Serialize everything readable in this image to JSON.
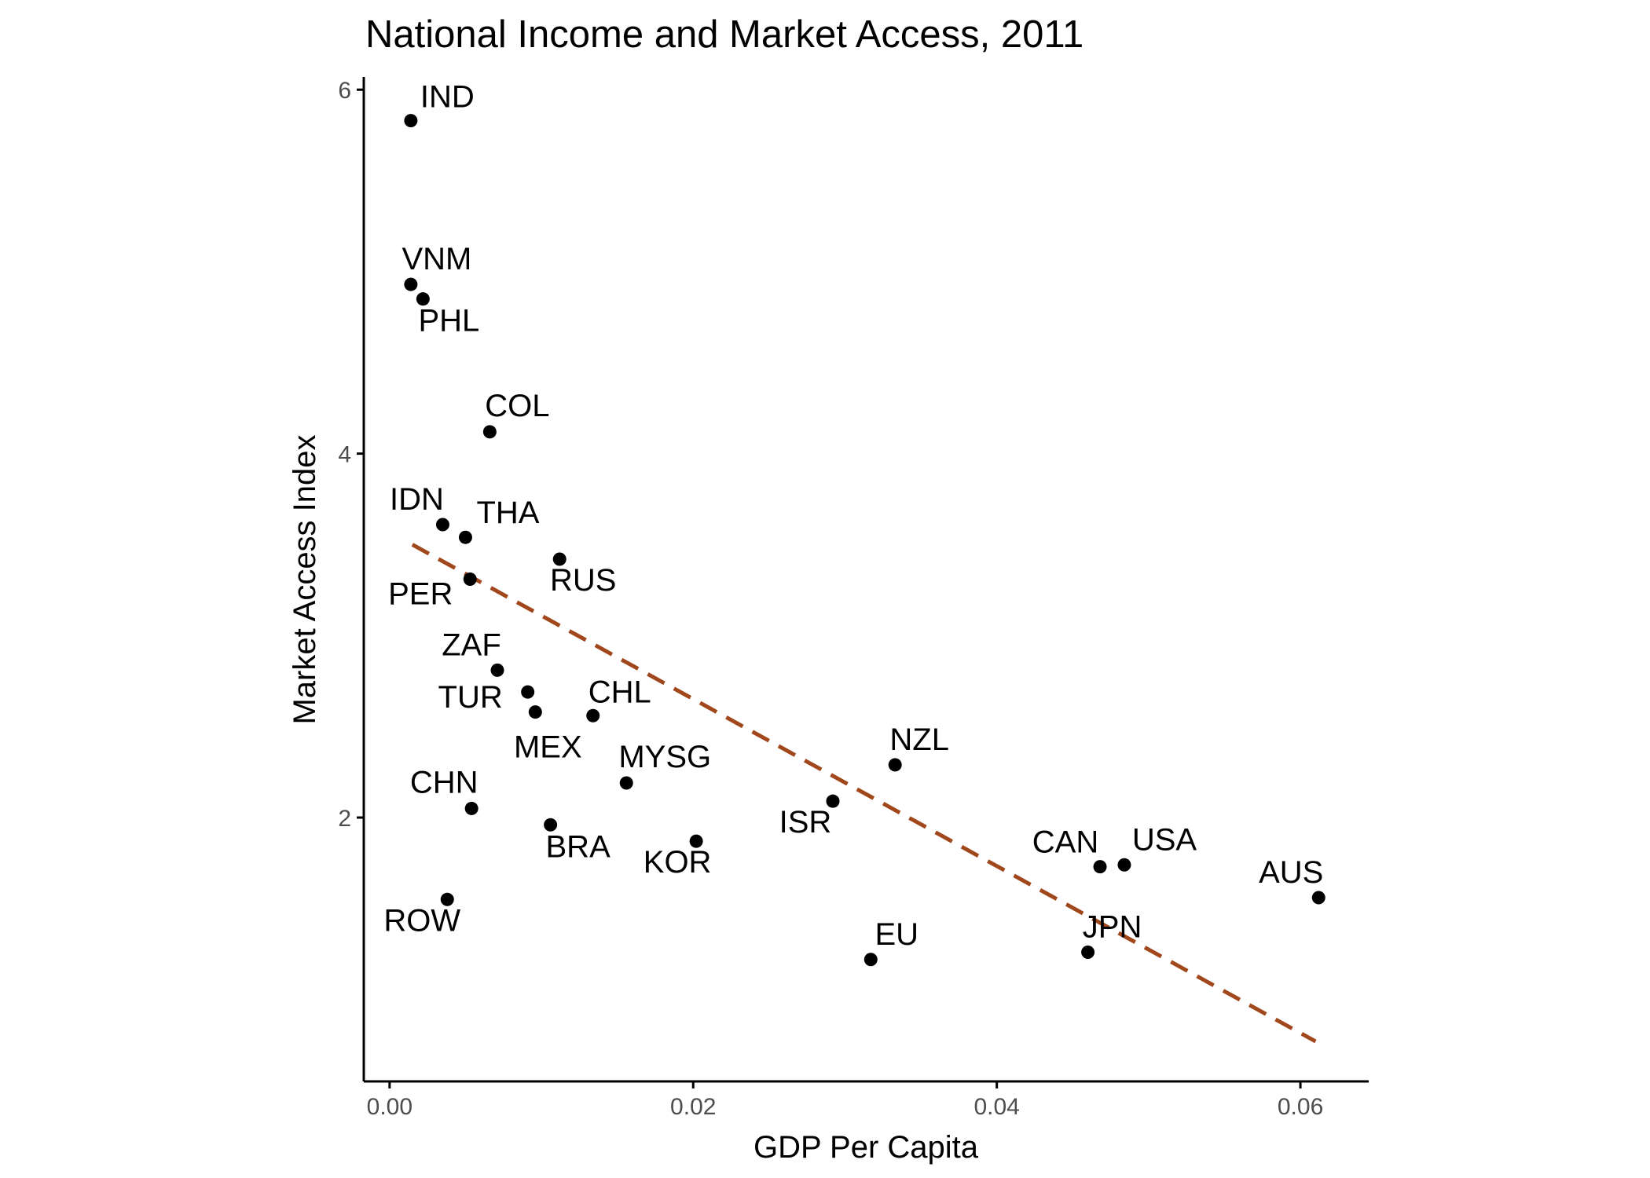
{
  "chart_data": {
    "type": "scatter",
    "title": "National Income and Market Access, 2011",
    "xlabel": "GDP Per Capita",
    "ylabel": "Market Access Index",
    "xlim": [
      -0.0017,
      0.0645
    ],
    "ylim": [
      0.55,
      6.07
    ],
    "xticks": [
      0.0,
      0.02,
      0.04,
      0.06
    ],
    "xtick_labels": [
      "0.00",
      "0.02",
      "0.04",
      "0.06"
    ],
    "yticks": [
      2,
      4,
      6
    ],
    "ytick_labels": [
      "2",
      "4",
      "6"
    ],
    "grid": false,
    "legend": "none",
    "point_color": "#000000",
    "trend_color": "#A0471B",
    "trendline": {
      "style": "dashed",
      "x": [
        0.0015,
        0.061
      ],
      "y": [
        3.5,
        0.77
      ]
    },
    "points": [
      {
        "label": "IND",
        "x": 0.0014,
        "y": 5.83,
        "anchor": "start",
        "dx": 12,
        "dy": -17
      },
      {
        "label": "VNM",
        "x": 0.0014,
        "y": 4.93,
        "anchor": "middle",
        "dx": 33,
        "dy": -19
      },
      {
        "label": "PHL",
        "x": 0.0022,
        "y": 4.85,
        "anchor": "middle",
        "dx": 33,
        "dy": 41
      },
      {
        "label": "COL",
        "x": 0.0066,
        "y": 4.12,
        "anchor": "middle",
        "dx": 35,
        "dy": -20
      },
      {
        "label": "IDN",
        "x": 0.0035,
        "y": 3.61,
        "anchor": "middle",
        "dx": -33,
        "dy": -19
      },
      {
        "label": "THA",
        "x": 0.005,
        "y": 3.54,
        "anchor": "middle",
        "dx": 54,
        "dy": -18
      },
      {
        "label": "RUS",
        "x": 0.0112,
        "y": 3.42,
        "anchor": "middle",
        "dx": 30,
        "dy": 40
      },
      {
        "label": "PER",
        "x": 0.0053,
        "y": 3.31,
        "anchor": "middle",
        "dx": -63,
        "dy": 32
      },
      {
        "label": "ZAF",
        "x": 0.0071,
        "y": 2.81,
        "anchor": "middle",
        "dx": -33,
        "dy": -19
      },
      {
        "label": "TUR",
        "x": 0.0091,
        "y": 2.69,
        "anchor": "middle",
        "dx": -73,
        "dy": 20
      },
      {
        "label": "MEX",
        "x": 0.0096,
        "y": 2.58,
        "anchor": "middle",
        "dx": 16,
        "dy": 58
      },
      {
        "label": "CHL",
        "x": 0.0134,
        "y": 2.56,
        "anchor": "middle",
        "dx": 34,
        "dy": -17
      },
      {
        "label": "MYSG",
        "x": 0.0156,
        "y": 2.19,
        "anchor": "middle",
        "dx": 49,
        "dy": -20
      },
      {
        "label": "NZL",
        "x": 0.0333,
        "y": 2.29,
        "anchor": "middle",
        "dx": 31,
        "dy": -19
      },
      {
        "label": "ISR",
        "x": 0.0292,
        "y": 2.09,
        "anchor": "middle",
        "dx": -35,
        "dy": 40
      },
      {
        "label": "CHN",
        "x": 0.0054,
        "y": 2.05,
        "anchor": "middle",
        "dx": -35,
        "dy": -20
      },
      {
        "label": "BRA",
        "x": 0.0106,
        "y": 1.96,
        "anchor": "middle",
        "dx": 35,
        "dy": 41
      },
      {
        "label": "KOR",
        "x": 0.0202,
        "y": 1.87,
        "anchor": "middle",
        "dx": -24,
        "dy": 40
      },
      {
        "label": "CAN",
        "x": 0.0468,
        "y": 1.73,
        "anchor": "middle",
        "dx": -44,
        "dy": -18
      },
      {
        "label": "USA",
        "x": 0.0484,
        "y": 1.74,
        "anchor": "middle",
        "dx": 51,
        "dy": -19
      },
      {
        "label": "AUS",
        "x": 0.0612,
        "y": 1.56,
        "anchor": "middle",
        "dx": -35,
        "dy": -19
      },
      {
        "label": "ROW",
        "x": 0.0038,
        "y": 1.55,
        "anchor": "middle",
        "dx": -32,
        "dy": 40
      },
      {
        "label": "EU",
        "x": 0.0317,
        "y": 1.22,
        "anchor": "middle",
        "dx": 33,
        "dy": -19
      },
      {
        "label": "JPN",
        "x": 0.046,
        "y": 1.26,
        "anchor": "middle",
        "dx": 31,
        "dy": -19
      }
    ]
  }
}
